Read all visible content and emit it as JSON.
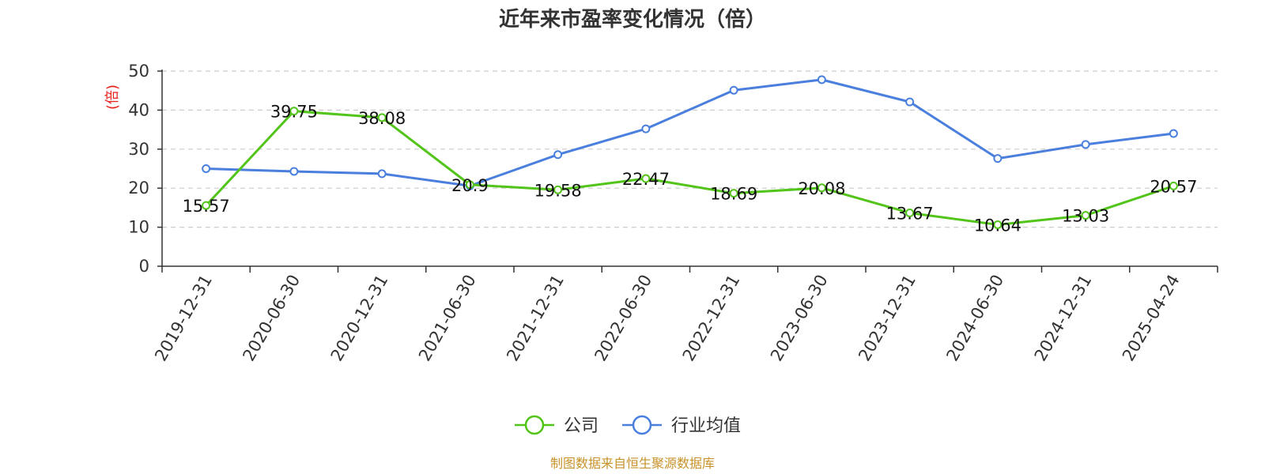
{
  "chart_data": {
    "type": "line",
    "title": "近年来市盈率变化情况（倍）",
    "ylabel": "(倍)",
    "xlabel": "",
    "ylim": [
      0,
      50
    ],
    "yticks": [
      0,
      10,
      20,
      30,
      40,
      50
    ],
    "grid": true,
    "legend": "bottom-center",
    "categories": [
      "2019-12-31",
      "2020-06-30",
      "2020-12-31",
      "2021-06-30",
      "2021-12-31",
      "2022-06-30",
      "2022-12-31",
      "2023-06-30",
      "2023-12-31",
      "2024-06-30",
      "2024-12-31",
      "2025-04-24"
    ],
    "series": [
      {
        "name": "公司",
        "color": "#52c41a",
        "show_labels": true,
        "values": [
          15.57,
          39.75,
          38.08,
          20.9,
          19.58,
          22.47,
          18.69,
          20.08,
          13.67,
          10.64,
          13.03,
          20.57
        ]
      },
      {
        "name": "行业均值",
        "color": "#4a7fdd",
        "show_labels": false,
        "values": [
          25.0,
          24.3,
          23.7,
          20.6,
          28.6,
          35.2,
          45.1,
          47.8,
          42.1,
          27.6,
          31.2,
          34.0
        ]
      }
    ],
    "source": "制图数据来自恒生聚源数据库"
  }
}
